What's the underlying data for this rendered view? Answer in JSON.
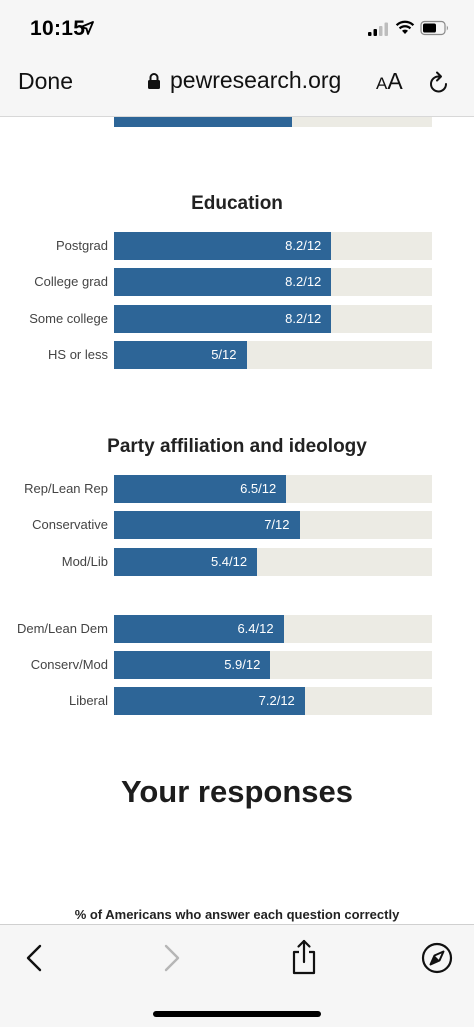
{
  "status": {
    "time": "10:15"
  },
  "browser": {
    "done_label": "Done",
    "domain": "pewresearch.org",
    "aa_small": "A",
    "aa_big": "A"
  },
  "partial_top_bar": {
    "value_text": "6.7/12",
    "value": 6.7
  },
  "education": {
    "title": "Education",
    "rows": [
      {
        "label": "Postgrad",
        "value_text": "8.2/12",
        "value": 8.2
      },
      {
        "label": "College grad",
        "value_text": "8.2/12",
        "value": 8.2
      },
      {
        "label": "Some college",
        "value_text": "8.2/12",
        "value": 8.2
      },
      {
        "label": "HS or less",
        "value_text": "5/12",
        "value": 5
      }
    ]
  },
  "party": {
    "title": "Party affiliation and ideology",
    "rep_rows": [
      {
        "label": "Rep/Lean Rep",
        "value_text": "6.5/12",
        "value": 6.5
      },
      {
        "label": "Conservative",
        "value_text": "7/12",
        "value": 7
      },
      {
        "label": "Mod/Lib",
        "value_text": "5.4/12",
        "value": 5.4
      }
    ],
    "dem_rows": [
      {
        "label": "Dem/Lean Dem",
        "value_text": "6.4/12",
        "value": 6.4
      },
      {
        "label": "Conserv/Mod",
        "value_text": "5.9/12",
        "value": 5.9
      },
      {
        "label": "Liberal",
        "value_text": "7.2/12",
        "value": 7.2
      }
    ]
  },
  "max_score": 12,
  "responses": {
    "heading": "Your responses",
    "subheading": "% of Americans who answer each question correctly"
  },
  "toolbar": {
    "back_icon": "chevron-left-icon",
    "forward_icon": "chevron-right-icon",
    "share_icon": "share-icon",
    "safari_icon": "compass-icon"
  },
  "colors": {
    "bar_fill": "#2d6597",
    "bar_track": "#ecebe4",
    "chrome_bg": "#f6f6f6"
  }
}
